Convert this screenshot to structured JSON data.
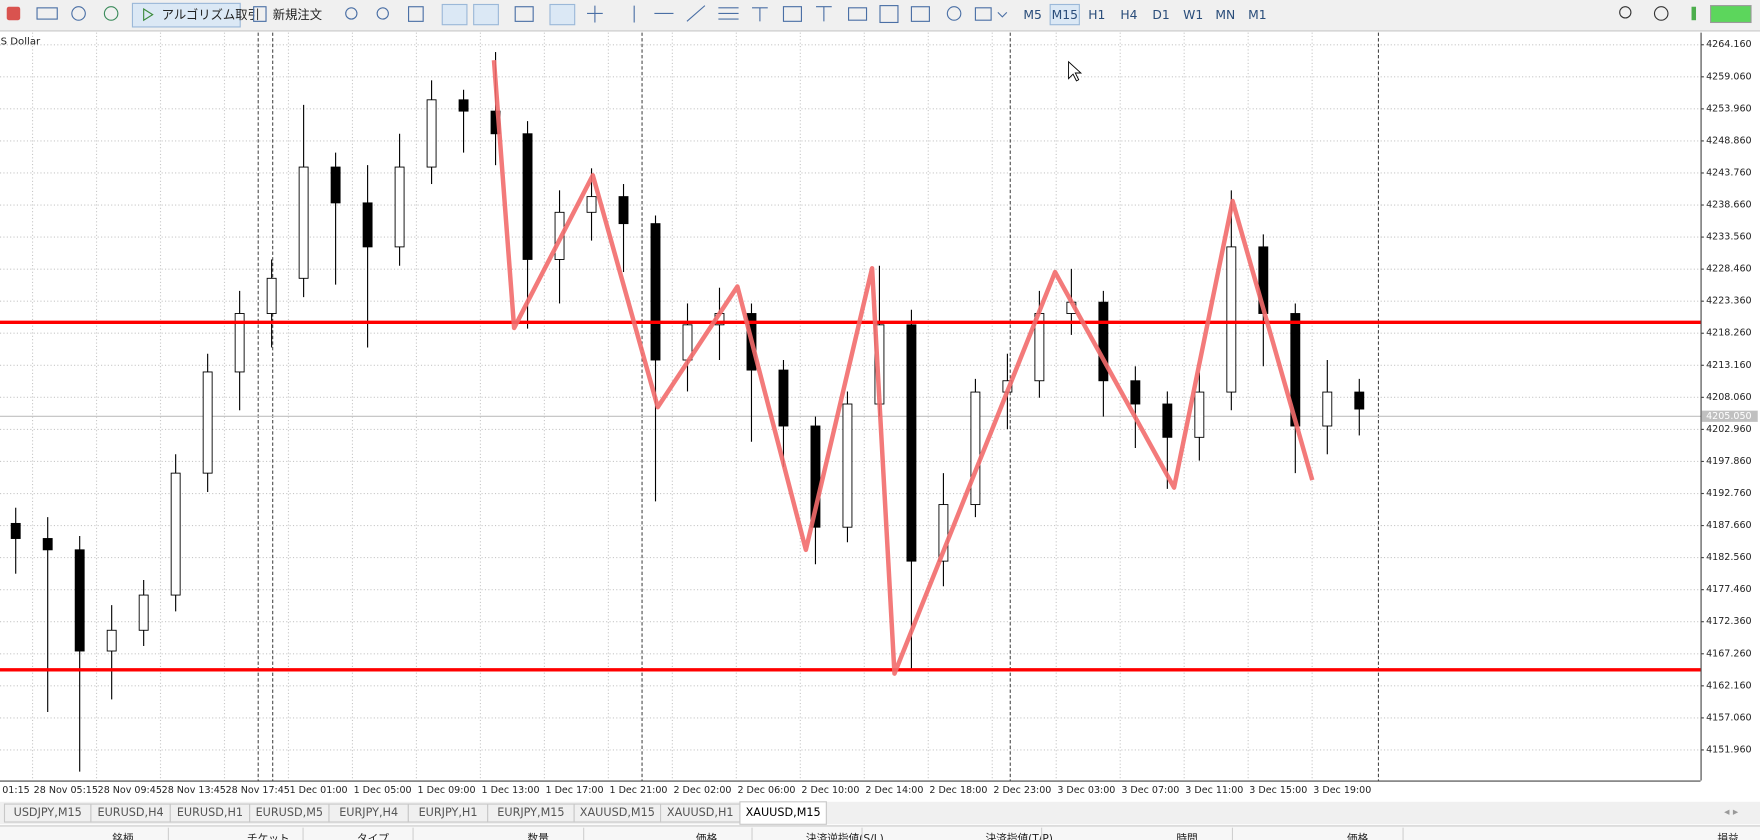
{
  "toolbar": {
    "algo_trading": "アルゴリズム取引",
    "new_order": "新規注文",
    "timeframes": [
      "M5",
      "M15",
      "H1",
      "H4",
      "D1",
      "W1",
      "MN",
      "M1"
    ],
    "active_timeframe": 1
  },
  "chart_data": {
    "type": "candlestick",
    "symbol_label": "US Dollar",
    "x_labels": [
      "01:15",
      "28 Nov 05:15",
      "28 Nov 09:45",
      "28 Nov 13:45",
      "28 Nov 17:45",
      "1 Dec 01:00",
      "1 Dec 05:00",
      "1 Dec 09:00",
      "1 Dec 13:00",
      "1 Dec 17:00",
      "1 Dec 21:00",
      "2 Dec 02:00",
      "2 Dec 06:00",
      "2 Dec 10:00",
      "2 Dec 14:00",
      "2 Dec 18:00",
      "2 Dec 23:00",
      "3 Dec 03:00",
      "3 Dec 07:00",
      "3 Dec 11:00",
      "3 Dec 15:00",
      "3 Dec 19:00"
    ],
    "open": [
      4188.0,
      4185.6,
      4183.8,
      4167.7,
      4171.0,
      4176.6,
      4196.0,
      4212.1,
      4221.4,
      4227.0,
      4244.7,
      4239.0,
      4232.0,
      4244.7,
      4255.4,
      4253.6,
      4250.0,
      4230.0,
      4237.5,
      4240.0,
      4235.7,
      4214.0,
      4219.6,
      4221.4,
      4212.4,
      4203.5,
      4187.4,
      4207.0,
      4219.6,
      4182.0,
      4191.0,
      4208.9,
      4210.7,
      4221.4,
      4223.2,
      4210.7,
      4207.0,
      4201.7,
      4208.9,
      4232.0,
      4221.4,
      4203.5,
      4208.9
    ],
    "high": [
      4190.5,
      4189.0,
      4186.0,
      4175.0,
      4179.0,
      4199.0,
      4215.0,
      4225.0,
      4230.0,
      4254.6,
      4247.0,
      4245.0,
      4250.0,
      4258.5,
      4257.0,
      4263.0,
      4252.0,
      4241.0,
      4244.5,
      4242.0,
      4237.0,
      4223.0,
      4225.5,
      4223.0,
      4214.0,
      4205.0,
      4209.0,
      4229.0,
      4222.0,
      4196.0,
      4211.0,
      4215.0,
      4225.0,
      4228.5,
      4225.0,
      4213.0,
      4209.0,
      4212.0,
      4241.0,
      4234.0,
      4223.0,
      4214.0,
      4211.0
    ],
    "low": [
      4180.0,
      4158.0,
      4148.5,
      4160.0,
      4168.5,
      4174.0,
      4193.0,
      4206.0,
      4216.0,
      4224.0,
      4226.0,
      4216.0,
      4229.0,
      4242.0,
      4247.0,
      4245.0,
      4219.0,
      4223.0,
      4233.0,
      4228.0,
      4191.5,
      4209.0,
      4214.0,
      4201.0,
      4197.0,
      4181.5,
      4185.0,
      4205.0,
      4164.5,
      4178.0,
      4189.0,
      4203.0,
      4208.0,
      4218.0,
      4205.0,
      4200.0,
      4193.5,
      4198.0,
      4206.0,
      4213.0,
      4196.0,
      4199.0,
      4202.0
    ],
    "close": [
      4185.6,
      4183.8,
      4167.7,
      4171.0,
      4176.6,
      4196.0,
      4212.1,
      4221.4,
      4227.0,
      4244.7,
      4239.0,
      4232.0,
      4244.7,
      4255.4,
      4253.6,
      4250.0,
      4230.0,
      4237.5,
      4240.0,
      4235.7,
      4214.0,
      4219.6,
      4221.4,
      4212.4,
      4203.5,
      4187.4,
      4207.0,
      4219.6,
      4182.0,
      4191.0,
      4208.9,
      4210.7,
      4221.4,
      4223.2,
      4210.7,
      4207.0,
      4201.7,
      4208.9,
      4232.0,
      4221.4,
      4203.5,
      4208.9,
      4206.2
    ],
    "bull_color": "#ffffff",
    "bear_color": "#000000",
    "ylim": [
      4147.1,
      4266.1
    ],
    "yticks": [
      {
        "value": 4264.16,
        "label": "4264.160"
      },
      {
        "value": 4259.06,
        "label": "4259.060"
      },
      {
        "value": 4253.96,
        "label": "4253.960"
      },
      {
        "value": 4248.86,
        "label": "4248.860"
      },
      {
        "value": 4243.76,
        "label": "4243.760"
      },
      {
        "value": 4238.66,
        "label": "4238.660"
      },
      {
        "value": 4233.56,
        "label": "4233.560"
      },
      {
        "value": 4228.46,
        "label": "4228.460"
      },
      {
        "value": 4223.36,
        "label": "4223.360"
      },
      {
        "value": 4218.26,
        "label": "4218.260"
      },
      {
        "value": 4213.16,
        "label": "4213.160"
      },
      {
        "value": 4208.06,
        "label": "4208.060"
      },
      {
        "value": 4202.96,
        "label": "4202.960"
      },
      {
        "value": 4197.86,
        "label": "4197.860"
      },
      {
        "value": 4192.76,
        "label": "4192.760"
      },
      {
        "value": 4187.66,
        "label": "4187.660"
      },
      {
        "value": 4182.56,
        "label": "4182.560"
      },
      {
        "value": 4177.46,
        "label": "4177.460"
      },
      {
        "value": 4172.36,
        "label": "4172.360"
      },
      {
        "value": 4167.26,
        "label": "4167.260"
      },
      {
        "value": 4162.16,
        "label": "4162.160"
      },
      {
        "value": 4157.06,
        "label": "4157.060"
      },
      {
        "value": 4151.96,
        "label": "4151.960"
      }
    ],
    "grid": true,
    "hlines": [
      {
        "value": 4220.0,
        "color": "#ff0000"
      },
      {
        "value": 4164.7,
        "color": "#ff0000"
      }
    ],
    "current_price": {
      "value": 4205.05,
      "label": "4205.050"
    },
    "zigzag": {
      "color": "#f26b6b",
      "x": [
        14.95,
        15.58,
        18.04,
        20.07,
        22.56,
        24.7,
        26.77,
        27.47,
        32.49,
        36.21,
        38.04,
        40.53
      ],
      "y": [
        4261.7,
        4219.1,
        4243.4,
        4206.5,
        4225.7,
        4183.8,
        4228.6,
        4164.1,
        4228.0,
        4193.7,
        4239.3,
        4194.9
      ]
    }
  },
  "tabs": {
    "items": [
      "USDJPY,M15",
      "EURUSD,H4",
      "EURUSD,H1",
      "EURUSD,M5",
      "EURJPY,H4",
      "EURJPY,H1",
      "EURJPY,M15",
      "XAUUSD,M15",
      "XAUUSD,H1",
      "XAUUSD,M15"
    ],
    "active": 9
  },
  "terminal": {
    "columns": [
      "銘柄",
      "チケット",
      "タイプ",
      "数量",
      "価格",
      "決済逆指値(S/L)",
      "決済指値(T/P)",
      "時間",
      "価格",
      "損益"
    ]
  }
}
